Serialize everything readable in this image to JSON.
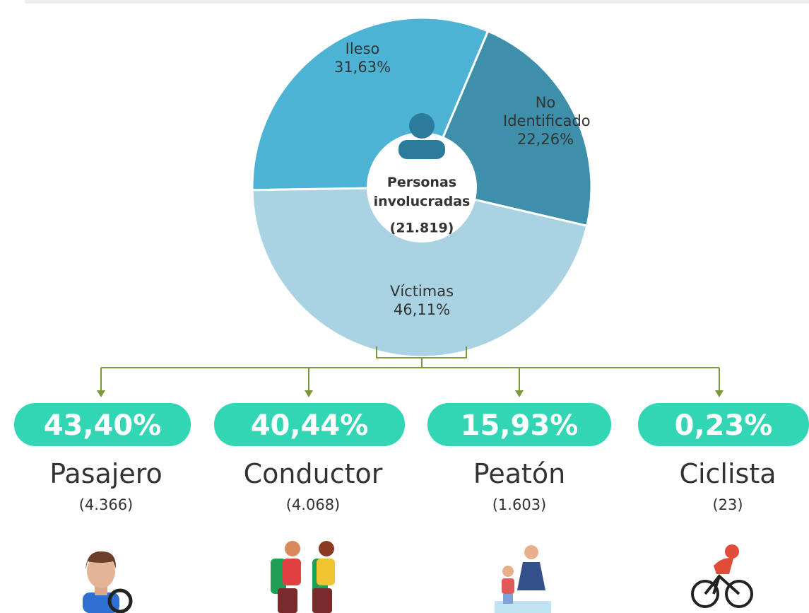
{
  "chart_data": {
    "type": "donut",
    "center_title": "Personas involucradas",
    "center_total": "(21.819)",
    "series": [
      {
        "name": "Ileso",
        "color": "#4cb3d4",
        "values": [
          31.63
        ],
        "value_labels": [
          "31,63%"
        ]
      },
      {
        "name": "No Identificado",
        "color": "#3e90aa",
        "values": [
          22.26
        ],
        "value_labels": [
          "22,26%"
        ]
      },
      {
        "name": "Víctimas",
        "color": "#a9d3e3",
        "values": [
          46.11
        ],
        "value_labels": [
          "46,11%"
        ]
      }
    ]
  },
  "breakdown": [
    {
      "percent": "43,40%",
      "name": "Pasajero",
      "count": "(4.366)"
    },
    {
      "percent": "40,44%",
      "name": "Conductor",
      "count": "(4.068)"
    },
    {
      "percent": "15,93%",
      "name": "Peatón",
      "count": "(1.603)"
    },
    {
      "percent": "0,23%",
      "name": "Ciclista",
      "count": "(23)"
    }
  ]
}
